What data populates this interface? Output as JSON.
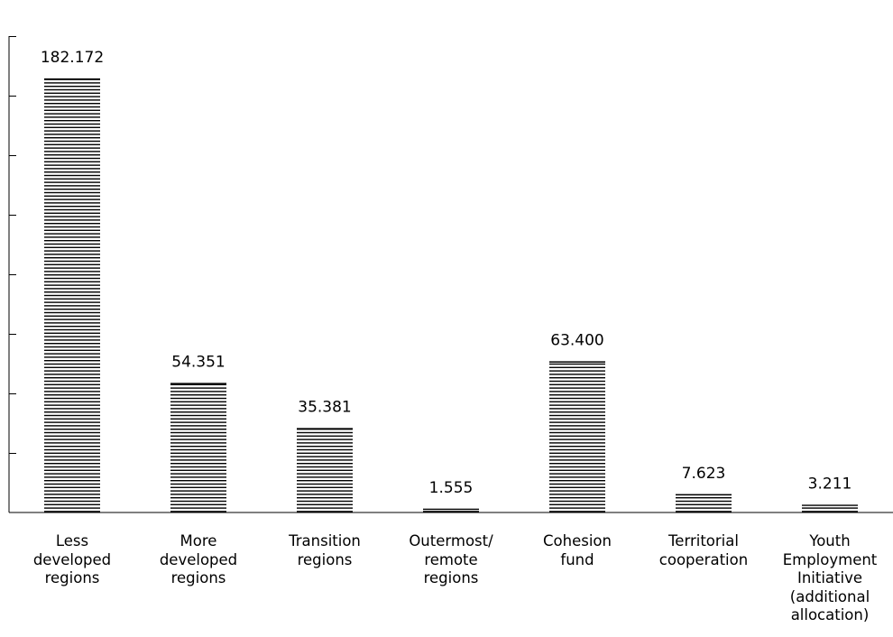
{
  "chart_data": {
    "type": "bar",
    "categories": [
      "Less\ndeveloped\nregions",
      "More\ndeveloped\nregions",
      "Transition\nregions",
      "Outermost/\nremote\nregions",
      "Cohesion\nfund",
      "Territorial\ncooperation",
      "Youth\nEmployment\nInitiative\n(additional\nallocation)"
    ],
    "values": [
      182.172,
      54.351,
      35.381,
      1.555,
      63.4,
      7.623,
      3.211
    ],
    "value_labels": [
      "182.172",
      "54.351",
      "35.381",
      "1.555",
      "63.400",
      "7.623",
      "3.211"
    ],
    "title": "",
    "xlabel": "",
    "ylabel": "",
    "ylim": [
      0,
      200
    ],
    "y_ticks": [
      0,
      25,
      50,
      75,
      100,
      125,
      150,
      175,
      200
    ],
    "tick_labels_shown": false,
    "grid": false,
    "bar_style": "horizontal-hatch",
    "colors": {
      "bar": "#000000",
      "axis": "#000000",
      "background": "#ffffff"
    }
  }
}
